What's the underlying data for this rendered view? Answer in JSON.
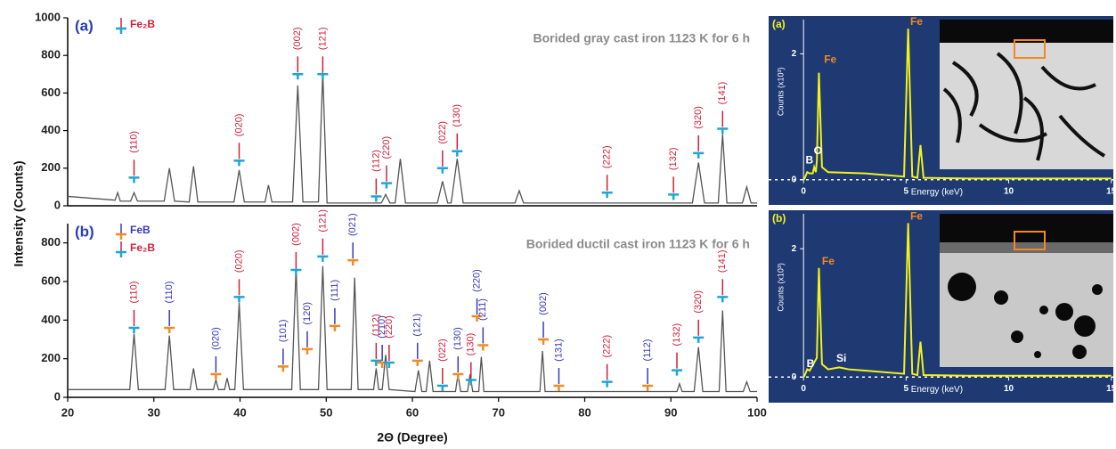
{
  "chart_data": [
    {
      "type": "line",
      "panel_label": "(a)",
      "title": "Borided gray cast iron 1123 K for 6 h",
      "y_label": "Intensity (Counts)",
      "axis_color": "#000000",
      "xlim": [
        20,
        100
      ],
      "ylim": [
        0,
        1000
      ],
      "yticks": [
        0,
        200,
        400,
        600,
        800,
        1000
      ],
      "legend": [
        {
          "name": "Fe₂B",
          "color": "#d0203a",
          "marker_color": "#1ba6d6"
        }
      ],
      "x": [
        20,
        25.5,
        25.8,
        26.1,
        27.3,
        27.7,
        28.1,
        31.2,
        31.8,
        32.4,
        34.1,
        34.6,
        35.1,
        39.3,
        39.9,
        40.5,
        42.9,
        43.3,
        43.7,
        46.1,
        46.7,
        47.3,
        49.1,
        49.6,
        50.1,
        56.4,
        56.9,
        57.4,
        58.0,
        58.6,
        59.2,
        62.9,
        63.5,
        64.1,
        64.5,
        65.2,
        65.9,
        71.9,
        72.4,
        72.9,
        92.5,
        93.2,
        93.9,
        95.5,
        96.0,
        96.5,
        98.3,
        98.8,
        99.3,
        100
      ],
      "series": [
        {
          "color": "#555555",
          "values": [
            50,
            30,
            70,
            25,
            25,
            70,
            25,
            25,
            200,
            25,
            20,
            210,
            20,
            20,
            190,
            20,
            20,
            110,
            20,
            20,
            640,
            20,
            20,
            710,
            15,
            15,
            60,
            15,
            15,
            250,
            15,
            15,
            130,
            15,
            15,
            250,
            15,
            15,
            80,
            15,
            15,
            230,
            15,
            15,
            380,
            15,
            15,
            100,
            15,
            15
          ]
        }
      ],
      "annotations": [
        {
          "text": "(110)",
          "x": 27.7,
          "y": 150,
          "text_color": "#d0203a",
          "marker_color": "#1ba6d6"
        },
        {
          "text": "(020)",
          "x": 39.9,
          "y": 240,
          "text_color": "#d0203a",
          "marker_color": "#1ba6d6"
        },
        {
          "text": "(002)",
          "x": 46.7,
          "y": 700,
          "text_color": "#d0203a",
          "marker_color": "#1ba6d6"
        },
        {
          "text": "(121)",
          "x": 49.6,
          "y": 700,
          "text_color": "#d0203a",
          "marker_color": "#1ba6d6"
        },
        {
          "text": "(112)",
          "x": 55.8,
          "y": 50,
          "text_color": "#d0203a",
          "marker_color": "#1ba6d6"
        },
        {
          "text": "(220)",
          "x": 57.0,
          "y": 120,
          "text_color": "#d0203a",
          "marker_color": "#1ba6d6"
        },
        {
          "text": "(022)",
          "x": 63.5,
          "y": 200,
          "text_color": "#d0203a",
          "marker_color": "#1ba6d6"
        },
        {
          "text": "(130)",
          "x": 65.2,
          "y": 290,
          "text_color": "#d0203a",
          "marker_color": "#1ba6d6"
        },
        {
          "text": "(222)",
          "x": 82.6,
          "y": 70,
          "text_color": "#d0203a",
          "marker_color": "#1ba6d6"
        },
        {
          "text": "(132)",
          "x": 90.3,
          "y": 60,
          "text_color": "#d0203a",
          "marker_color": "#1ba6d6"
        },
        {
          "text": "(320)",
          "x": 93.2,
          "y": 280,
          "text_color": "#d0203a",
          "marker_color": "#1ba6d6"
        },
        {
          "text": "(141)",
          "x": 96.0,
          "y": 410,
          "text_color": "#d0203a",
          "marker_color": "#1ba6d6"
        }
      ]
    },
    {
      "type": "line",
      "panel_label": "(b)",
      "title": "Borided ductil cast iron 1123 K for 6 h",
      "x_label": "2Θ (Degree)",
      "axis_color": "#000000",
      "xlim": [
        20,
        100
      ],
      "xticks": [
        20,
        30,
        40,
        50,
        60,
        70,
        80,
        90,
        100
      ],
      "ylim": [
        0,
        900
      ],
      "yticks": [
        0,
        200,
        400,
        600,
        800
      ],
      "legend": [
        {
          "name": "FeB",
          "color": "#3a3ab8",
          "marker_color": "#f08a24"
        },
        {
          "name": "Fe₂B",
          "color": "#d0203a",
          "marker_color": "#1ba6d6"
        }
      ],
      "x": [
        20,
        27.2,
        27.7,
        28.2,
        31.3,
        31.8,
        32.3,
        34.2,
        34.6,
        35.0,
        36.9,
        37.2,
        37.5,
        38.2,
        38.5,
        38.8,
        39.4,
        39.9,
        40.4,
        46.0,
        46.5,
        47.0,
        49.1,
        49.6,
        50.1,
        52.9,
        53.3,
        53.7,
        55.5,
        55.8,
        56.1,
        56.5,
        56.9,
        57.3,
        60.3,
        60.7,
        61.1,
        61.6,
        62.0,
        62.4,
        65.0,
        65.3,
        65.6,
        66.4,
        66.7,
        67.0,
        67.7,
        68.0,
        68.3,
        74.8,
        75.1,
        75.4,
        90.7,
        91.0,
        91.3,
        92.7,
        93.2,
        93.7,
        95.6,
        96.0,
        96.4,
        98.4,
        98.8,
        99.2,
        100
      ],
      "series": [
        {
          "color": "#555555",
          "values": [
            40,
            40,
            330,
            40,
            40,
            320,
            40,
            40,
            150,
            40,
            40,
            90,
            40,
            40,
            100,
            40,
            40,
            490,
            40,
            40,
            670,
            40,
            40,
            680,
            40,
            40,
            620,
            40,
            40,
            150,
            40,
            40,
            220,
            40,
            30,
            140,
            30,
            30,
            190,
            30,
            30,
            120,
            30,
            30,
            120,
            30,
            30,
            210,
            30,
            30,
            240,
            30,
            30,
            70,
            30,
            30,
            260,
            30,
            30,
            450,
            30,
            30,
            80,
            30,
            30
          ]
        }
      ],
      "annotations": [
        {
          "text": "(110)",
          "x": 27.7,
          "y": 360,
          "text_color": "#d0203a",
          "marker_color": "#1ba6d6"
        },
        {
          "text": "(110)",
          "x": 31.8,
          "y": 360,
          "text_color": "#3a3ab8",
          "marker_color": "#f08a24"
        },
        {
          "text": "(020)",
          "x": 37.2,
          "y": 120,
          "text_color": "#3a3ab8",
          "marker_color": "#f08a24"
        },
        {
          "text": "(020)",
          "x": 39.9,
          "y": 520,
          "text_color": "#d0203a",
          "marker_color": "#1ba6d6"
        },
        {
          "text": "(101)",
          "x": 45.0,
          "y": 160,
          "text_color": "#3a3ab8",
          "marker_color": "#f08a24"
        },
        {
          "text": "(002)",
          "x": 46.5,
          "y": 660,
          "text_color": "#d0203a",
          "marker_color": "#1ba6d6"
        },
        {
          "text": "(120)",
          "x": 47.8,
          "y": 250,
          "text_color": "#3a3ab8",
          "marker_color": "#f08a24"
        },
        {
          "text": "(121)",
          "x": 49.6,
          "y": 730,
          "text_color": "#d0203a",
          "marker_color": "#1ba6d6"
        },
        {
          "text": "(111)",
          "x": 51.0,
          "y": 370,
          "text_color": "#3a3ab8",
          "marker_color": "#f08a24"
        },
        {
          "text": "(021)",
          "x": 53.1,
          "y": 710,
          "text_color": "#3a3ab8",
          "marker_color": "#f08a24"
        },
        {
          "text": "(112)",
          "x": 55.8,
          "y": 190,
          "text_color": "#d0203a",
          "marker_color": "#1ba6d6"
        },
        {
          "text": "(210)",
          "x": 56.5,
          "y": 180,
          "text_color": "#3a3ab8",
          "marker_color": "#f08a24"
        },
        {
          "text": "(220)",
          "x": 57.3,
          "y": 180,
          "text_color": "#d0203a",
          "marker_color": "#1ba6d6"
        },
        {
          "text": "(121)",
          "x": 60.6,
          "y": 190,
          "text_color": "#3a3ab8",
          "marker_color": "#f08a24"
        },
        {
          "text": "(022)",
          "x": 63.5,
          "y": 60,
          "text_color": "#d0203a",
          "marker_color": "#1ba6d6"
        },
        {
          "text": "(130)",
          "x": 65.3,
          "y": 120,
          "text_color": "#3a3ab8",
          "marker_color": "#f08a24"
        },
        {
          "text": "(130)",
          "x": 66.8,
          "y": 90,
          "text_color": "#d0203a",
          "marker_color": "#1ba6d6"
        },
        {
          "text": "(220)",
          "x": 67.5,
          "y": 420,
          "text_color": "#3a3ab8",
          "marker_color": "#f08a24"
        },
        {
          "text": "(211)",
          "x": 68.2,
          "y": 270,
          "text_color": "#3a3ab8",
          "marker_color": "#f08a24"
        },
        {
          "text": "(002)",
          "x": 75.2,
          "y": 300,
          "text_color": "#3a3ab8",
          "marker_color": "#f08a24"
        },
        {
          "text": "(131)",
          "x": 77.0,
          "y": 60,
          "text_color": "#3a3ab8",
          "marker_color": "#f08a24"
        },
        {
          "text": "(222)",
          "x": 82.6,
          "y": 80,
          "text_color": "#d0203a",
          "marker_color": "#1ba6d6"
        },
        {
          "text": "(112)",
          "x": 87.3,
          "y": 60,
          "text_color": "#3a3ab8",
          "marker_color": "#f08a24"
        },
        {
          "text": "(132)",
          "x": 90.7,
          "y": 140,
          "text_color": "#d0203a",
          "marker_color": "#1ba6d6"
        },
        {
          "text": "(320)",
          "x": 93.2,
          "y": 310,
          "text_color": "#d0203a",
          "marker_color": "#1ba6d6"
        },
        {
          "text": "(141)",
          "x": 96.0,
          "y": 520,
          "text_color": "#d0203a",
          "marker_color": "#1ba6d6"
        }
      ]
    },
    {
      "type": "spectrum",
      "panel_label": "(a)",
      "x_label": "Energy (keV)",
      "y_label": "Counts (x10³)",
      "plot_background": "#1f3a73",
      "axis_color": "#ffffff",
      "xlim": [
        -1.7,
        15.1
      ],
      "xticks": [
        0,
        5,
        10,
        15
      ],
      "ylim": [
        -0.4,
        2.6
      ],
      "yticks": [
        0,
        2
      ],
      "x": [
        0,
        0.05,
        0.18,
        0.3,
        0.45,
        0.52,
        0.6,
        0.65,
        0.75,
        0.9,
        1.2,
        3,
        4.9,
        5.1,
        5.3,
        5.55,
        5.7,
        5.85,
        8,
        15
      ],
      "series": [
        {
          "color": "#f2f21a",
          "values": [
            0,
            0.02,
            0.12,
            0.1,
            0.1,
            0.2,
            0.12,
            0.3,
            1.7,
            0.2,
            0.12,
            0.1,
            0.05,
            2.4,
            0.05,
            0.03,
            0.55,
            0.03,
            0.02,
            0.02
          ]
        }
      ],
      "annotations": [
        {
          "text": "Fe",
          "x": 1.0,
          "y": 1.9,
          "color": "#f08a24"
        },
        {
          "text": "Fe",
          "x": 5.2,
          "y": 2.5,
          "color": "#f08a24"
        },
        {
          "text": "B",
          "x": 0.1,
          "y": 0.3,
          "color": "#ffffff"
        },
        {
          "text": "O",
          "x": 0.5,
          "y": 0.45,
          "color": "#ffffff"
        }
      ]
    },
    {
      "type": "spectrum",
      "panel_label": "(b)",
      "x_label": "Energy (keV)",
      "y_label": "Counts (x10³)",
      "plot_background": "#1f3a73",
      "axis_color": "#ffffff",
      "xlim": [
        -1.7,
        15.1
      ],
      "xticks": [
        0,
        5,
        10,
        15
      ],
      "ylim": [
        -0.4,
        2.6
      ],
      "yticks": [
        0,
        2
      ],
      "x": [
        0,
        0.05,
        0.18,
        0.3,
        0.65,
        0.75,
        0.9,
        1.2,
        1.74,
        2.2,
        3,
        4.9,
        5.1,
        5.3,
        5.55,
        5.7,
        5.85,
        8,
        15
      ],
      "series": [
        {
          "color": "#f2f21a",
          "values": [
            0,
            0.02,
            0.12,
            0.1,
            0.3,
            1.7,
            0.2,
            0.12,
            0.15,
            0.12,
            0.1,
            0.05,
            2.4,
            0.05,
            0.03,
            0.55,
            0.03,
            0.02,
            0.02
          ]
        }
      ],
      "annotations": [
        {
          "text": "Fe",
          "x": 0.9,
          "y": 1.8,
          "color": "#f08a24"
        },
        {
          "text": "Fe",
          "x": 5.2,
          "y": 2.5,
          "color": "#f08a24"
        },
        {
          "text": "B",
          "x": 0.15,
          "y": 0.2,
          "color": "#ffffff"
        },
        {
          "text": "Si",
          "x": 1.6,
          "y": 0.28,
          "color": "#ffffff"
        }
      ]
    }
  ]
}
